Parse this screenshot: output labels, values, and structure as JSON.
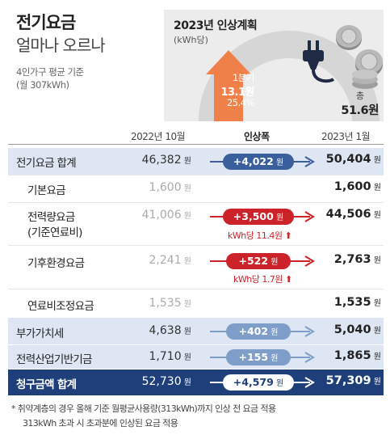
{
  "heading": {
    "title_line1": "전기요금",
    "title_line2": "얼마나 오르나",
    "sub_line1": "4인가구 평균 기준",
    "sub_line2": "(월 307kWh)"
  },
  "plan": {
    "title": "2023년 인상계획",
    "unit": "(kWh당)",
    "q1_label": "1분기",
    "q1_value": "13.1원",
    "q1_percent": "25.4%",
    "q1_share": 0.254,
    "total_label": "총",
    "total_value": "51.6원",
    "colors": {
      "accent": "#f0804a",
      "track": "#d6d6d6"
    }
  },
  "table": {
    "headers": {
      "prev": "2022년 10월",
      "change": "인상폭",
      "next": "2023년 1월"
    },
    "unit": "원",
    "rows": [
      {
        "label": "전기요금 합계",
        "prev": "46,382",
        "change": "+4,022",
        "next": "50,404",
        "note": ""
      },
      {
        "label": "기본요금",
        "prev": "1,600",
        "change": "",
        "next": "1,600",
        "note": ""
      },
      {
        "label_line1": "전력량요금",
        "label_line2": "(기준연료비)",
        "prev": "41,006",
        "change": "+3,500",
        "next": "44,506",
        "note": "kWh당 11.4원"
      },
      {
        "label": "기후환경요금",
        "prev": "2,241",
        "change": "+522",
        "next": "2,763",
        "note": "kWh당 1.7원"
      },
      {
        "label": "연료비조정요금",
        "prev": "1,535",
        "change": "",
        "next": "1,535",
        "note": ""
      },
      {
        "label": "부가가치세",
        "prev": "4,638",
        "change": "+402",
        "next": "5,040",
        "note": ""
      },
      {
        "label": "전력산업기반기금",
        "prev": "1,710",
        "change": "+155",
        "next": "1,865",
        "note": ""
      },
      {
        "label": "청구금액 합계",
        "prev": "52,730",
        "change": "+4,579",
        "next": "57,309",
        "note": ""
      }
    ]
  },
  "footnote": {
    "line1": "* 취약계층의 경우 올해 기준 월평균사용량(313kWh)까지 인상 전 요금 적용",
    "line2": "313kWh 초과 시 초과분에 인상된 요금 적용"
  },
  "colors": {
    "blue_row": "#dde6f2",
    "dark_row": "#1e3f7a",
    "pill_blue": "#3a5f9c",
    "pill_lightblue": "#7e9ec9",
    "red": "#cc2229"
  }
}
